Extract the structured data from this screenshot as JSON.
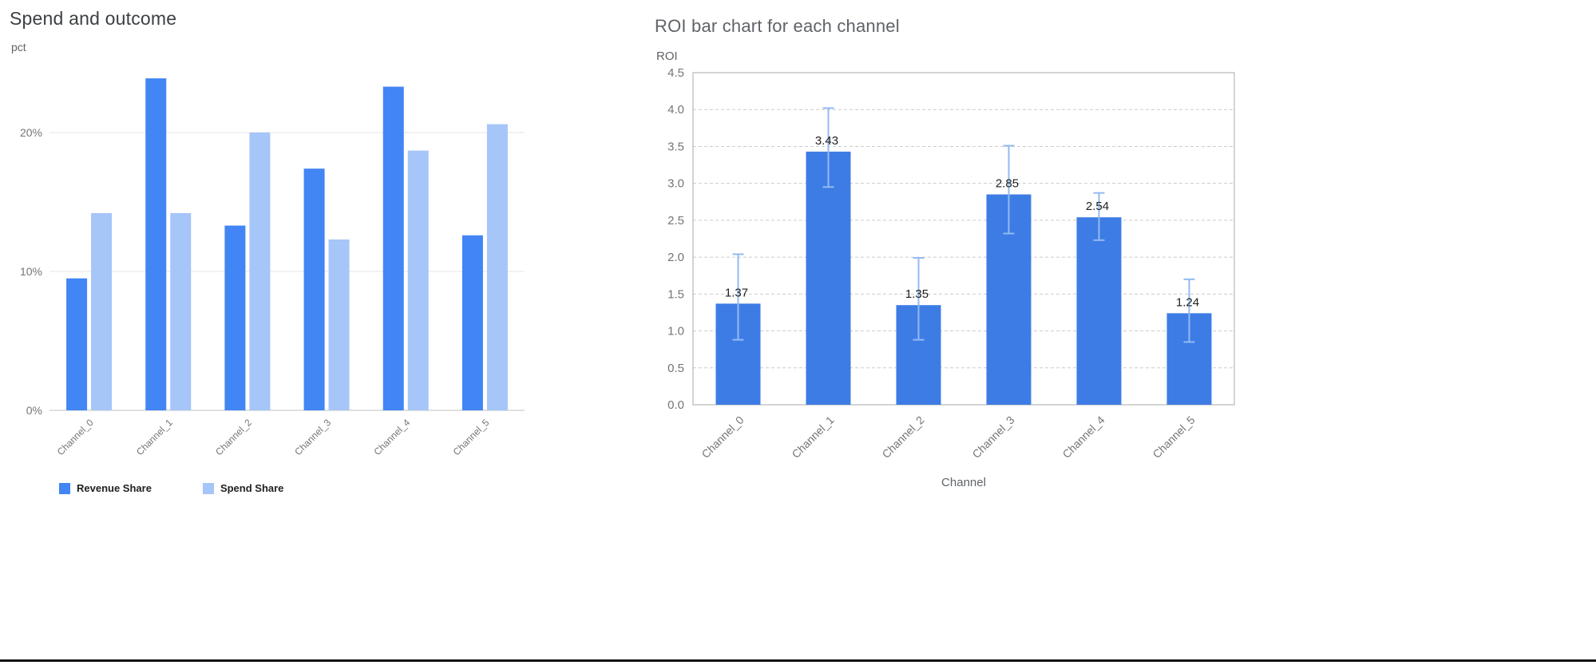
{
  "chart_data": [
    {
      "type": "bar",
      "title": "Spend and outcome",
      "xlabel": "",
      "ylabel": "pct",
      "categories": [
        "Channel_0",
        "Channel_1",
        "Channel_2",
        "Channel_3",
        "Channel_4",
        "Channel_5"
      ],
      "series": [
        {
          "name": "Revenue Share",
          "color": "#4285F4",
          "values": [
            9.5,
            23.9,
            13.3,
            17.4,
            23.3,
            12.6
          ]
        },
        {
          "name": "Spend Share",
          "color": "#A6C5F8",
          "values": [
            14.2,
            14.2,
            20.0,
            12.3,
            18.7,
            20.6
          ]
        }
      ],
      "ylim": [
        0,
        25
      ],
      "yticks": [
        0,
        10,
        20
      ],
      "ytick_labels": [
        "0%",
        "10%",
        "20%"
      ],
      "grid": "solid",
      "legend_position": "bottom"
    },
    {
      "type": "bar",
      "title": "ROI bar chart for each channel",
      "xlabel": "Channel",
      "ylabel": "ROI",
      "categories": [
        "Channel_0",
        "Channel_1",
        "Channel_2",
        "Channel_3",
        "Channel_4",
        "Channel_5"
      ],
      "values": [
        1.37,
        3.43,
        1.35,
        2.85,
        2.54,
        1.24
      ],
      "value_labels": [
        "1.37",
        "3.43",
        "1.35",
        "2.85",
        "2.54",
        "1.24"
      ],
      "error_low": [
        0.88,
        2.95,
        0.88,
        2.32,
        2.23,
        0.85
      ],
      "error_high": [
        2.04,
        4.02,
        1.99,
        3.51,
        2.87,
        1.7
      ],
      "bar_color": "#3D7CE5",
      "error_color": "#93BAF2",
      "ylim": [
        0,
        4.5
      ],
      "yticks": [
        0,
        0.5,
        1.0,
        1.5,
        2.0,
        2.5,
        3.0,
        3.5,
        4.0,
        4.5
      ],
      "grid": "dashed",
      "legend_position": "none"
    }
  ]
}
